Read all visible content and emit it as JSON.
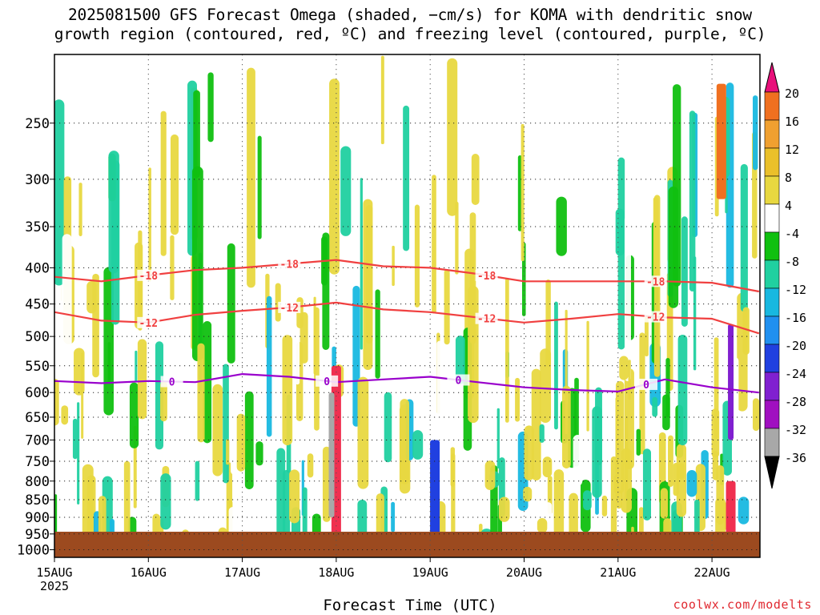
{
  "title_line1": "2025081500 GFS Forecast Omega (shaded, −cm/s) for KOMA with dendritic snow",
  "title_line2": "growth region (contoured, red, ºC) and freezing level (contoured, purple, ºC)",
  "credit": "coolwx.com/modelts",
  "colors": {
    "ground": "#9c4a1f",
    "dgz_contour": "#f04040",
    "freezing_contour": "#9900cc"
  },
  "chart_data": {
    "type": "heatmap",
    "title": "2025081500 GFS Forecast Omega (shaded, −cm/s) for KOMA with dendritic snow growth region (contoured, red, ºC) and freezing level (contoured, purple, ºC)",
    "xlabel": "Forecast Time (UTC)",
    "ylabel": "",
    "x_range_days": [
      "15AUG 00Z",
      "22AUG 12Z"
    ],
    "x_ticks": [
      "15AUG",
      "16AUG",
      "17AUG",
      "18AUG",
      "19AUG",
      "20AUG",
      "21AUG",
      "22AUG"
    ],
    "x_tick_sublabel": "2025",
    "y_ticks": [
      250,
      300,
      350,
      400,
      450,
      500,
      550,
      600,
      650,
      700,
      750,
      800,
      850,
      900,
      950,
      1000
    ],
    "y_range_hPa": [
      200,
      1025
    ],
    "y_scale": "log-pressure",
    "grid": true,
    "colorbar": {
      "labels": [
        "20",
        "16",
        "12",
        "8",
        "4",
        "-4",
        "-8",
        "-12",
        "-16",
        "-20",
        "-24",
        "-28",
        "-32",
        "-36"
      ],
      "levels": [
        20,
        16,
        12,
        8,
        4,
        -4,
        -8,
        -12,
        -16,
        -20,
        -24,
        -28,
        -32,
        -36
      ],
      "colors": [
        "#f03050",
        "#f07020",
        "#f0a030",
        "#eac02a",
        "#e8d840",
        "#ffffff",
        "#10c010",
        "#20d0a0",
        "#18b8e0",
        "#2090f0",
        "#2040e0",
        "#8020d0",
        "#a010c0",
        "#a8a8a8",
        "#000000"
      ],
      "top_arrow_color": "#e8107a",
      "bottom_arrow_color": "#000000"
    },
    "contours": [
      {
        "label": "-18",
        "color": "#f04040",
        "x": [
          0,
          0.5,
          1.0,
          1.5,
          2.0,
          2.5,
          3.0,
          3.5,
          4.0,
          4.5,
          5.0,
          5.5,
          6.0,
          6.5,
          7.0,
          7.5
        ],
        "y": [
          412,
          418,
          410,
          403,
          400,
          395,
          390,
          398,
          400,
          408,
          418,
          418,
          418,
          418,
          420,
          432
        ],
        "label_days": [
          1.0,
          2.5,
          4.6,
          6.4
        ]
      },
      {
        "label": "-12",
        "color": "#f04040",
        "x": [
          0,
          0.5,
          1.0,
          1.5,
          2.0,
          2.5,
          3.0,
          3.5,
          4.0,
          4.5,
          5.0,
          5.5,
          6.0,
          6.5,
          7.0,
          7.5
        ],
        "y": [
          462,
          475,
          478,
          466,
          460,
          455,
          448,
          458,
          462,
          470,
          478,
          472,
          465,
          470,
          472,
          495
        ],
        "label_days": [
          1.0,
          2.5,
          4.6,
          6.4
        ]
      },
      {
        "label": "0",
        "color": "#9900cc",
        "x": [
          0,
          0.5,
          1.0,
          1.5,
          2.0,
          2.5,
          3.0,
          3.5,
          4.0,
          4.5,
          5.0,
          5.5,
          6.0,
          6.5,
          7.0,
          7.5
        ],
        "y": [
          578,
          582,
          578,
          580,
          565,
          570,
          580,
          575,
          570,
          580,
          590,
          595,
          598,
          575,
          590,
          600
        ],
        "label_days": [
          1.25,
          2.9,
          4.3,
          6.3
        ]
      }
    ],
    "omega_features_days_hPa": [
      {
        "x": 3.0,
        "top": 550,
        "bottom": 950,
        "value": 20
      },
      {
        "x": 2.95,
        "top": 600,
        "bottom": 900,
        "value": -36
      },
      {
        "x": 4.05,
        "top": 700,
        "bottom": 950,
        "value": -24
      },
      {
        "x": 7.2,
        "top": 480,
        "bottom": 700,
        "value": -28
      },
      {
        "x": 7.2,
        "top": 800,
        "bottom": 950,
        "value": 20
      },
      {
        "x": 7.1,
        "top": 220,
        "bottom": 320,
        "value": 16
      }
    ]
  }
}
